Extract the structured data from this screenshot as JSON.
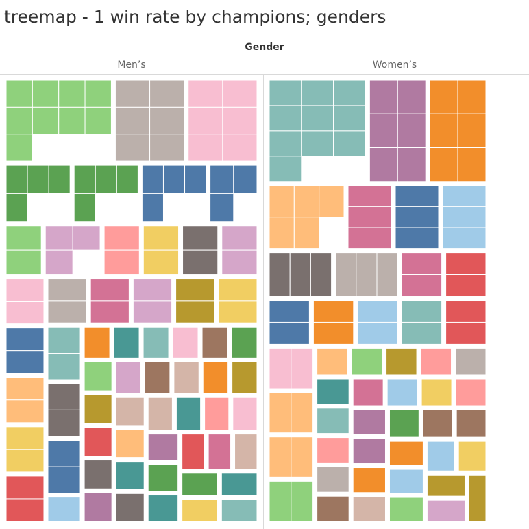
{
  "title": "treemap - 1 win rate by champions; genders",
  "column_header": "Gender",
  "chart_data": {
    "type": "treemap",
    "title": "treemap - 1 win rate by champions; genders",
    "column_field": "Gender",
    "panes": [
      {
        "name": "Men’s",
        "groups": [
          {
            "color": "#8fd17c",
            "cells": 9
          },
          {
            "color": "#bbb0ab",
            "cells": 6
          },
          {
            "color": "#f8bed1",
            "cells": 6
          },
          {
            "color": "#5ba252",
            "cells": 4
          },
          {
            "color": "#5ba252",
            "cells": 4
          },
          {
            "color": "#4e79a8",
            "cells": 4
          },
          {
            "color": "#4e79a8",
            "cells": 3
          },
          {
            "color": "#8fd17c",
            "cells": 2
          },
          {
            "color": "#d5a6c9",
            "cells": 3
          },
          {
            "color": "#ff9c9b",
            "cells": 2
          },
          {
            "color": "#f1ce62",
            "cells": 2
          },
          {
            "color": "#7a706e",
            "cells": 2
          },
          {
            "color": "#d5a6c9",
            "cells": 2
          },
          {
            "color": "#f8bed1",
            "cells": 2
          },
          {
            "color": "#4e79a8",
            "cells": 2
          },
          {
            "color": "#ffbd7a",
            "cells": 2
          },
          {
            "color": "#f1ce62",
            "cells": 2
          },
          {
            "color": "#e15759",
            "cells": 2
          },
          {
            "color": "#bbb0ab",
            "cells": 2
          },
          {
            "color": "#d37295",
            "cells": 2
          },
          {
            "color": "#d5a6c9",
            "cells": 2
          },
          {
            "color": "#b7992e",
            "cells": 2
          },
          {
            "color": "#f1ce62",
            "cells": 2
          },
          {
            "color": "#86bcb6",
            "cells": 2
          },
          {
            "color": "#7a706e",
            "cells": 2
          },
          {
            "color": "#4e79a8",
            "cells": 2
          },
          {
            "color": "#a0cbe8",
            "cells": 1
          },
          {
            "color": "#f28e2b",
            "cells": 1
          },
          {
            "color": "#499894",
            "cells": 1
          },
          {
            "color": "#86bcb6",
            "cells": 1
          },
          {
            "color": "#f8bed1",
            "cells": 1
          },
          {
            "color": "#9d7660",
            "cells": 1
          },
          {
            "color": "#5ba252",
            "cells": 1
          },
          {
            "color": "#8fd17c",
            "cells": 1
          },
          {
            "color": "#b7992e",
            "cells": 1
          },
          {
            "color": "#e15759",
            "cells": 1
          },
          {
            "color": "#7a706e",
            "cells": 1
          },
          {
            "color": "#b07aa1",
            "cells": 1
          },
          {
            "color": "#d5a6c9",
            "cells": 1
          },
          {
            "color": "#9d7660",
            "cells": 1
          },
          {
            "color": "#d4b5a8",
            "cells": 1
          },
          {
            "color": "#f28e2b",
            "cells": 1
          },
          {
            "color": "#b7992e",
            "cells": 1
          },
          {
            "color": "#d4b5a8",
            "cells": 1
          },
          {
            "color": "#ffbd7a",
            "cells": 1
          },
          {
            "color": "#499894",
            "cells": 1
          },
          {
            "color": "#7a706e",
            "cells": 1
          },
          {
            "color": "#d4b5a8",
            "cells": 1
          },
          {
            "color": "#499894",
            "cells": 1
          },
          {
            "color": "#ff9c9b",
            "cells": 1
          },
          {
            "color": "#f8bed1",
            "cells": 1
          },
          {
            "color": "#b07aa1",
            "cells": 1
          },
          {
            "color": "#5ba252",
            "cells": 1
          },
          {
            "color": "#499894",
            "cells": 1
          },
          {
            "color": "#e15759",
            "cells": 1
          },
          {
            "color": "#d37295",
            "cells": 1
          },
          {
            "color": "#d4b5a8",
            "cells": 1
          },
          {
            "color": "#5ba252",
            "cells": 1
          },
          {
            "color": "#f1ce62",
            "cells": 1
          },
          {
            "color": "#499894",
            "cells": 1
          },
          {
            "color": "#86bcb6",
            "cells": 1
          }
        ]
      },
      {
        "name": "Women’s",
        "groups": [
          {
            "color": "#86bcb6",
            "cells": 10
          },
          {
            "color": "#b07aa1",
            "cells": 6
          },
          {
            "color": "#f28e2b",
            "cells": 6
          },
          {
            "color": "#ffbd7a",
            "cells": 5
          },
          {
            "color": "#d37295",
            "cells": 3
          },
          {
            "color": "#4e79a8",
            "cells": 3
          },
          {
            "color": "#a0cbe8",
            "cells": 3
          },
          {
            "color": "#7a706e",
            "cells": 3
          },
          {
            "color": "#bbb0ab",
            "cells": 3
          },
          {
            "color": "#d37295",
            "cells": 2
          },
          {
            "color": "#e15759",
            "cells": 2
          },
          {
            "color": "#4e79a8",
            "cells": 2
          },
          {
            "color": "#f28e2b",
            "cells": 2
          },
          {
            "color": "#a0cbe8",
            "cells": 2
          },
          {
            "color": "#86bcb6",
            "cells": 2
          },
          {
            "color": "#e15759",
            "cells": 2
          },
          {
            "color": "#f8bed1",
            "cells": 2
          },
          {
            "color": "#ffbd7a",
            "cells": 2
          },
          {
            "color": "#ffbd7a",
            "cells": 2
          },
          {
            "color": "#8fd17c",
            "cells": 2
          },
          {
            "color": "#ffbd7a",
            "cells": 1
          },
          {
            "color": "#8fd17c",
            "cells": 1
          },
          {
            "color": "#b7992e",
            "cells": 1
          },
          {
            "color": "#ff9c9b",
            "cells": 1
          },
          {
            "color": "#bbb0ab",
            "cells": 1
          },
          {
            "color": "#499894",
            "cells": 1
          },
          {
            "color": "#86bcb6",
            "cells": 1
          },
          {
            "color": "#ff9c9b",
            "cells": 1
          },
          {
            "color": "#bbb0ab",
            "cells": 1
          },
          {
            "color": "#9d7660",
            "cells": 1
          },
          {
            "color": "#d37295",
            "cells": 1
          },
          {
            "color": "#a0cbe8",
            "cells": 1
          },
          {
            "color": "#f1ce62",
            "cells": 1
          },
          {
            "color": "#ff9c9b",
            "cells": 1
          },
          {
            "color": "#b07aa1",
            "cells": 1
          },
          {
            "color": "#b07aa1",
            "cells": 1
          },
          {
            "color": "#f28e2b",
            "cells": 1
          },
          {
            "color": "#d4b5a8",
            "cells": 1
          },
          {
            "color": "#5ba252",
            "cells": 1
          },
          {
            "color": "#9d7660",
            "cells": 1
          },
          {
            "color": "#9d7660",
            "cells": 1
          },
          {
            "color": "#f28e2b",
            "cells": 1
          },
          {
            "color": "#a0cbe8",
            "cells": 1
          },
          {
            "color": "#8fd17c",
            "cells": 1
          },
          {
            "color": "#a0cbe8",
            "cells": 1
          },
          {
            "color": "#f1ce62",
            "cells": 1
          },
          {
            "color": "#b7992e",
            "cells": 1
          },
          {
            "color": "#d5a6c9",
            "cells": 1
          },
          {
            "color": "#b7992e",
            "cells": 1
          }
        ]
      }
    ]
  }
}
